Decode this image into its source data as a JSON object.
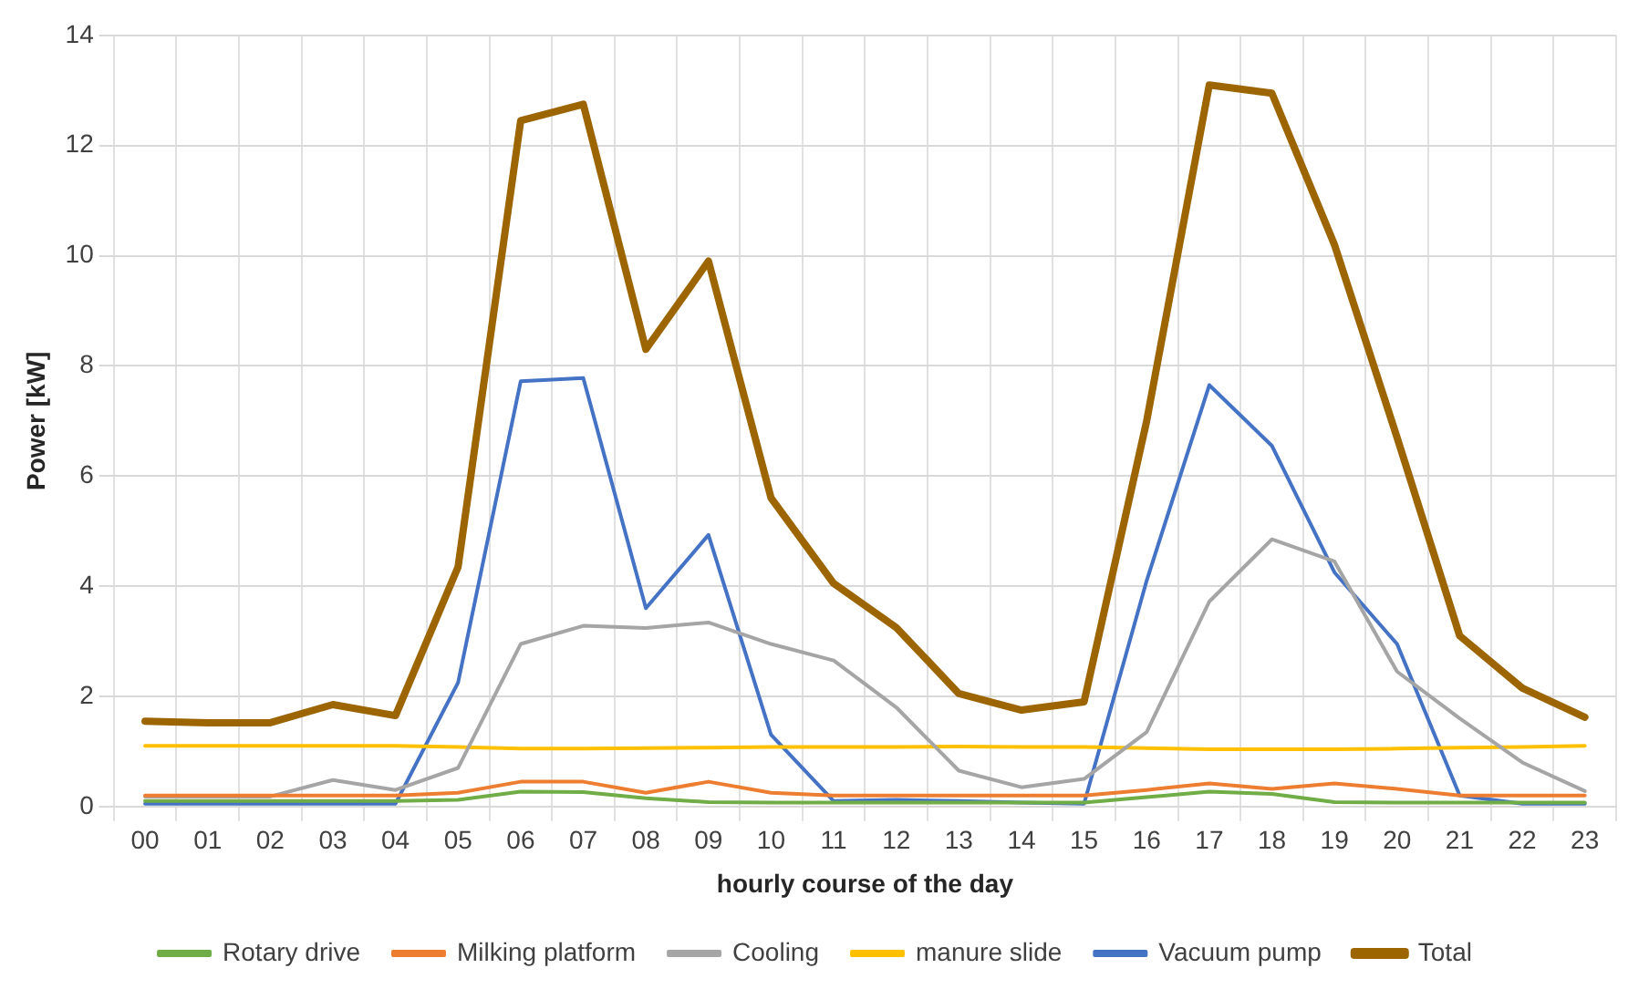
{
  "chart_data": {
    "type": "line",
    "xlabel": "hourly course of the day",
    "ylabel": "Power [kW]",
    "categories": [
      "00",
      "01",
      "02",
      "03",
      "04",
      "05",
      "06",
      "07",
      "08",
      "09",
      "10",
      "11",
      "12",
      "13",
      "14",
      "15",
      "16",
      "17",
      "18",
      "19",
      "20",
      "21",
      "22",
      "23"
    ],
    "ylim": [
      0,
      14
    ],
    "yticks": [
      0,
      2,
      4,
      6,
      8,
      10,
      12,
      14
    ],
    "grid": true,
    "legend": "bottom",
    "marker": "none",
    "line_style": "solid",
    "series": [
      {
        "name": "Rotary drive",
        "color": "#70ad47",
        "values": [
          0.1,
          0.1,
          0.1,
          0.1,
          0.1,
          0.12,
          0.27,
          0.26,
          0.15,
          0.08,
          0.07,
          0.07,
          0.07,
          0.07,
          0.07,
          0.07,
          0.17,
          0.27,
          0.23,
          0.08,
          0.07,
          0.07,
          0.07,
          0.07
        ]
      },
      {
        "name": "Milking platform",
        "color": "#ed7d31",
        "values": [
          0.2,
          0.2,
          0.2,
          0.2,
          0.2,
          0.25,
          0.45,
          0.45,
          0.25,
          0.45,
          0.25,
          0.2,
          0.2,
          0.2,
          0.2,
          0.2,
          0.3,
          0.42,
          0.32,
          0.42,
          0.32,
          0.2,
          0.2,
          0.2
        ]
      },
      {
        "name": "Cooling",
        "color": "#a5a5a5",
        "values": [
          0.18,
          0.18,
          0.18,
          0.48,
          0.3,
          0.7,
          2.95,
          3.28,
          3.24,
          3.34,
          2.95,
          2.65,
          1.8,
          0.65,
          0.35,
          0.5,
          1.35,
          3.72,
          4.85,
          4.45,
          2.45,
          1.6,
          0.8,
          0.28
        ]
      },
      {
        "name": "manure slide",
        "color": "#ffc000",
        "values": [
          1.1,
          1.1,
          1.1,
          1.1,
          1.1,
          1.08,
          1.05,
          1.05,
          1.06,
          1.07,
          1.08,
          1.08,
          1.08,
          1.09,
          1.08,
          1.08,
          1.06,
          1.04,
          1.04,
          1.04,
          1.05,
          1.07,
          1.08,
          1.1
        ]
      },
      {
        "name": "Vacuum pump",
        "color": "#4472c4",
        "values": [
          0.05,
          0.05,
          0.05,
          0.05,
          0.05,
          2.25,
          7.72,
          7.78,
          3.6,
          4.93,
          1.3,
          0.1,
          0.12,
          0.1,
          0.07,
          0.05,
          4.1,
          7.65,
          6.55,
          4.25,
          2.95,
          0.2,
          0.05,
          0.05
        ]
      },
      {
        "name": "Total",
        "color": "#9c6500",
        "values": [
          1.55,
          1.52,
          1.52,
          1.85,
          1.65,
          4.35,
          12.45,
          12.75,
          8.3,
          9.9,
          5.6,
          4.05,
          3.25,
          2.05,
          1.75,
          1.9,
          7.0,
          13.1,
          12.95,
          10.2,
          6.7,
          3.1,
          2.15,
          1.62
        ]
      }
    ]
  }
}
